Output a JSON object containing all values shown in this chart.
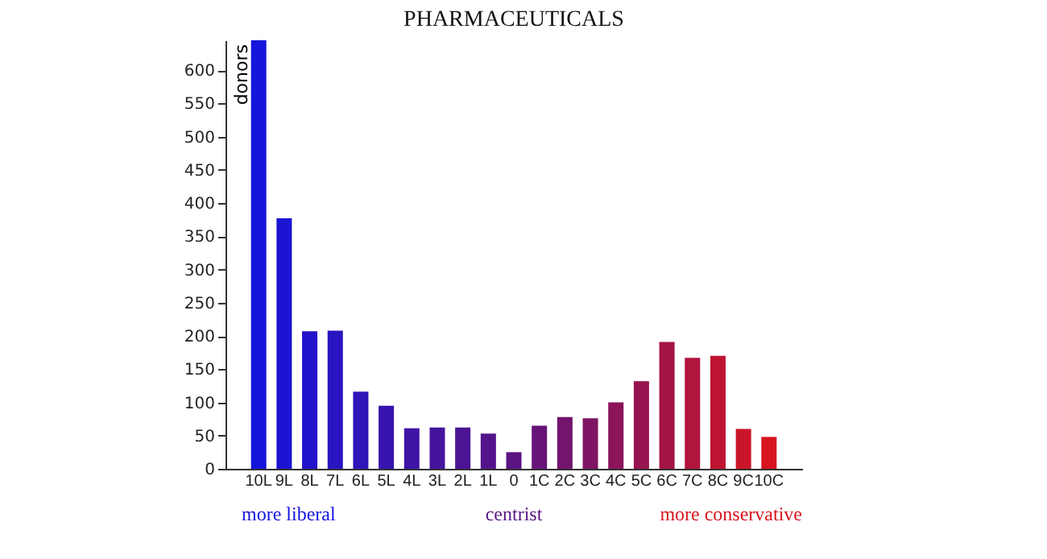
{
  "chart_data": {
    "type": "bar",
    "title": "PHARMACEUTICALS",
    "ylabel": "donors",
    "categories": [
      "10L",
      "9L",
      "8L",
      "7L",
      "6L",
      "5L",
      "4L",
      "3L",
      "2L",
      "1L",
      "0",
      "1C",
      "2C",
      "3C",
      "4C",
      "5C",
      "6C",
      "7C",
      "8C",
      "9C",
      "10C"
    ],
    "values": [
      645,
      377,
      207,
      208,
      116,
      95,
      61,
      62,
      62,
      53,
      25,
      65,
      78,
      76,
      100,
      132,
      191,
      167,
      170,
      60,
      48
    ],
    "colors": [
      "#1414dc",
      "#1b14d3",
      "#2214ca",
      "#2914c1",
      "#3014b8",
      "#3714af",
      "#3e14a6",
      "#45149d",
      "#4c1494",
      "#53148b",
      "#5a1482",
      "#661478",
      "#73146e",
      "#7f1464",
      "#8c145a",
      "#981450",
      "#a51446",
      "#b1143c",
      "#be1432",
      "#ca1428",
      "#d7141e"
    ],
    "ylim": [
      0,
      645
    ],
    "yticks": [
      0,
      50,
      100,
      150,
      200,
      250,
      300,
      350,
      400,
      450,
      500,
      550,
      600
    ],
    "grid": false,
    "annotations": [
      "more liberal",
      "centrist",
      "more conservative"
    ]
  }
}
